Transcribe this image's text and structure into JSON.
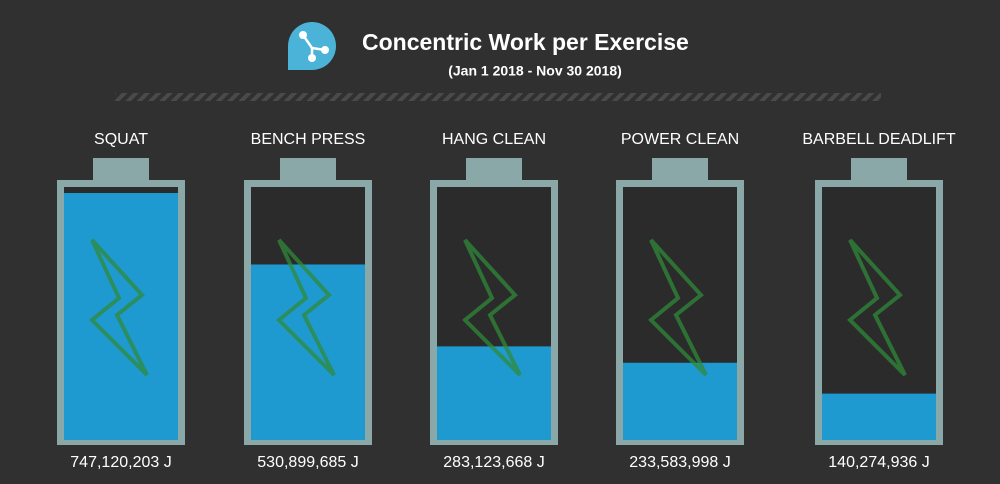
{
  "chart_data": {
    "type": "battery",
    "title": "Concentric Work per Exercise",
    "subtitle": "(Jan 1 2018 -  Nov 30 2018)",
    "categories": [
      "SQUAT",
      "BENCH PRESS",
      "HANG CLEAN",
      "POWER CLEAN",
      "BARBELL DEADLIFT"
    ],
    "values": [
      747120203,
      530899685,
      283123668,
      233583998,
      140274936
    ],
    "value_labels": [
      "747,120,203 J",
      "530,899,685 J",
      "283,123,668 J",
      "233,583,998 J",
      "140,274,936 J"
    ],
    "color": "#1f9ad0"
  }
}
